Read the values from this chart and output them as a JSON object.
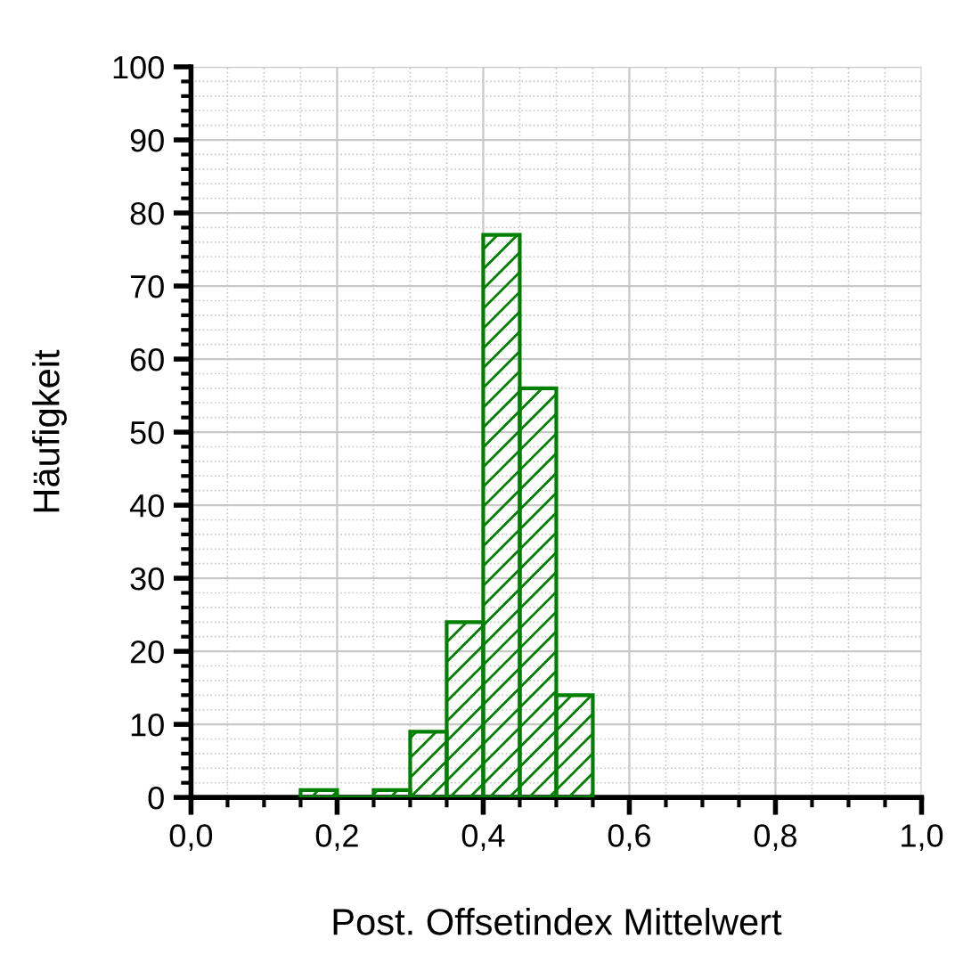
{
  "chart_data": {
    "type": "histogram",
    "xlabel": "Post. Offsetindex Mittelwert",
    "ylabel": "Häufigkeit",
    "bins": [
      0.15,
      0.2,
      0.25,
      0.3,
      0.35,
      0.4,
      0.45,
      0.5,
      0.55
    ],
    "values": [
      1,
      0,
      1,
      9,
      24,
      77,
      56,
      14
    ],
    "color": "#008000",
    "xlim": [
      0,
      1
    ],
    "ylim": [
      0,
      100
    ],
    "xticks": [
      {
        "value": 0,
        "label": "0,0"
      },
      {
        "value": 0.2,
        "label": "0,2"
      },
      {
        "value": 0.4,
        "label": "0,4"
      },
      {
        "value": 0.6,
        "label": "0,6"
      },
      {
        "value": 0.8,
        "label": "0,8"
      },
      {
        "value": 1,
        "label": "1,0"
      }
    ],
    "yticks": [
      0,
      10,
      20,
      30,
      40,
      50,
      60,
      70,
      80,
      90,
      100
    ],
    "grid": true
  }
}
